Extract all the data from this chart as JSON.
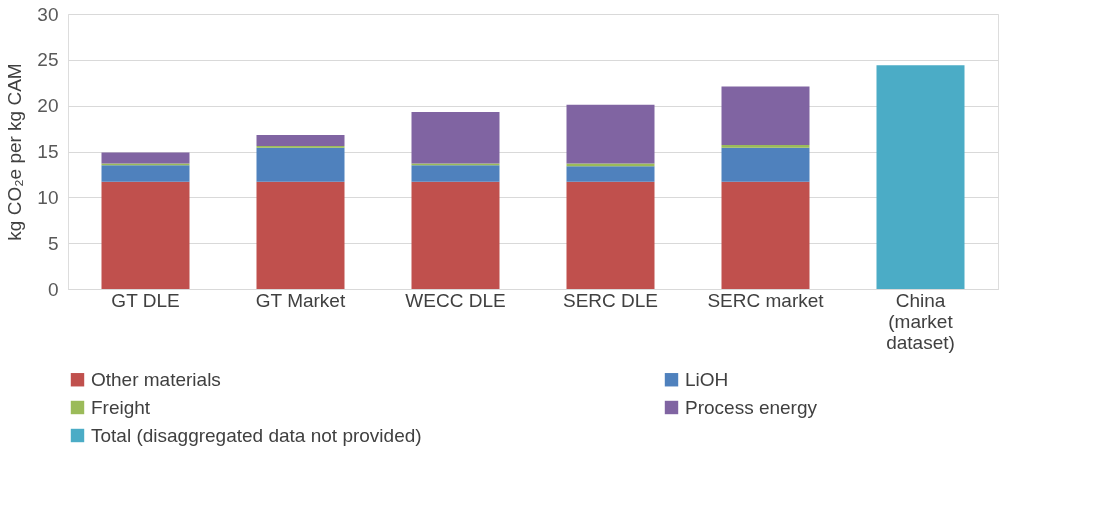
{
  "chart_data": {
    "type": "bar",
    "stacked": true,
    "ylabel": "kg CO₂e per kg CAM",
    "categories": [
      "GT DLE",
      "GT Market",
      "WECC DLE",
      "SERC DLE",
      "SERC market",
      "China (market dataset)"
    ],
    "series": [
      {
        "name": "Other materials",
        "color": "#c0504d",
        "values": [
          11.7,
          11.7,
          11.7,
          11.7,
          11.7,
          null
        ]
      },
      {
        "name": "LiOH",
        "color": "#4f81bd",
        "values": [
          1.8,
          3.7,
          1.8,
          1.7,
          3.7,
          null
        ]
      },
      {
        "name": "Freight",
        "color": "#9bbb59",
        "values": [
          0.2,
          0.2,
          0.2,
          0.3,
          0.3,
          null
        ]
      },
      {
        "name": "Process energy",
        "color": "#8064a2",
        "values": [
          1.2,
          1.2,
          5.6,
          6.4,
          6.4,
          null
        ]
      },
      {
        "name": "Total (disaggregated data not provided)",
        "color": "#4bacc6",
        "values": [
          null,
          null,
          null,
          null,
          null,
          24.4
        ]
      }
    ],
    "ylim": [
      0,
      30
    ],
    "yticks": [
      0,
      5,
      10,
      15,
      20,
      25,
      30
    ],
    "grid": "y",
    "legend": "bottom"
  }
}
